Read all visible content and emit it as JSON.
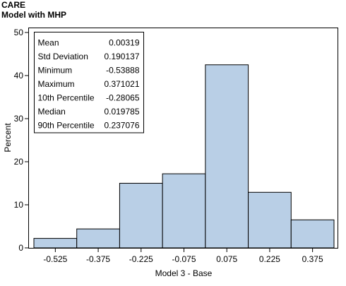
{
  "header": {
    "title": "CARE",
    "subtitle": "Model with MHP"
  },
  "chart_data": {
    "type": "bar",
    "histogram": true,
    "categories": [
      "-0.525",
      "-0.375",
      "-0.225",
      "-0.075",
      "0.075",
      "0.225",
      "0.375"
    ],
    "values": [
      2.2,
      4.4,
      15.0,
      17.2,
      42.5,
      12.9,
      6.5
    ],
    "xlabel": "Model 3 - Base",
    "ylabel": "Percent",
    "ylim": [
      0,
      50
    ],
    "yticks": [
      0,
      10,
      20,
      30,
      40,
      50
    ],
    "grid": false,
    "bar_color": "#b9cfe6",
    "bar_edge_color": "#000000",
    "stats_inset": {
      "placement": "top-left",
      "rows": [
        {
          "label": "Mean",
          "value": "0.00319"
        },
        {
          "label": "Std Deviation",
          "value": "0.190137"
        },
        {
          "label": "Minimum",
          "value": "-0.53888"
        },
        {
          "label": "Maximum",
          "value": "0.371021"
        },
        {
          "label": "10th Percentile",
          "value": "-0.28065"
        },
        {
          "label": "Median",
          "value": "0.019785"
        },
        {
          "label": "90th Percentile",
          "value": "0.237076"
        }
      ]
    }
  }
}
